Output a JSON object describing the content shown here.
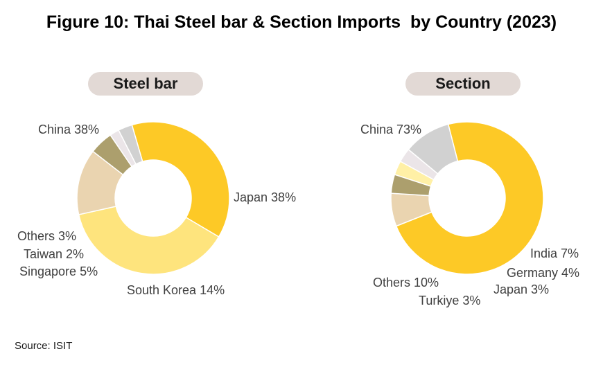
{
  "title": "Figure 10: Thai Steel bar & Section Imports  by Country (2023)",
  "source": "Source: ISIT",
  "chart_data": [
    {
      "type": "pie",
      "donut": true,
      "title": "Steel bar",
      "categories": [
        "China",
        "Japan",
        "South Korea",
        "Singapore",
        "Taiwan",
        "Others"
      ],
      "values": [
        38,
        38,
        14,
        5,
        2,
        3
      ],
      "labels": [
        "China 38%",
        "Japan 38%",
        "South Korea 14%",
        "Singapore 5%",
        "Taiwan 2%",
        "Others 3%"
      ],
      "colors": [
        "#fdc926",
        "#fee47d",
        "#ead4b0",
        "#ac9f6d",
        "#ebe5e8",
        "#d1d1d1"
      ]
    },
    {
      "type": "pie",
      "donut": true,
      "title": "Section",
      "categories": [
        "China",
        "India",
        "Germany",
        "Japan",
        "Turkiye",
        "Others"
      ],
      "values": [
        73,
        7,
        4,
        3,
        3,
        10
      ],
      "labels": [
        "China 73%",
        "India 7%",
        "Germany 4%",
        "Japan 3%",
        "Turkiye 3%",
        "Others 10%"
      ],
      "colors": [
        "#fdc926",
        "#ead4b0",
        "#ac9f6d",
        "#fff0a6",
        "#ebe5e8",
        "#d1d1d1"
      ]
    }
  ]
}
